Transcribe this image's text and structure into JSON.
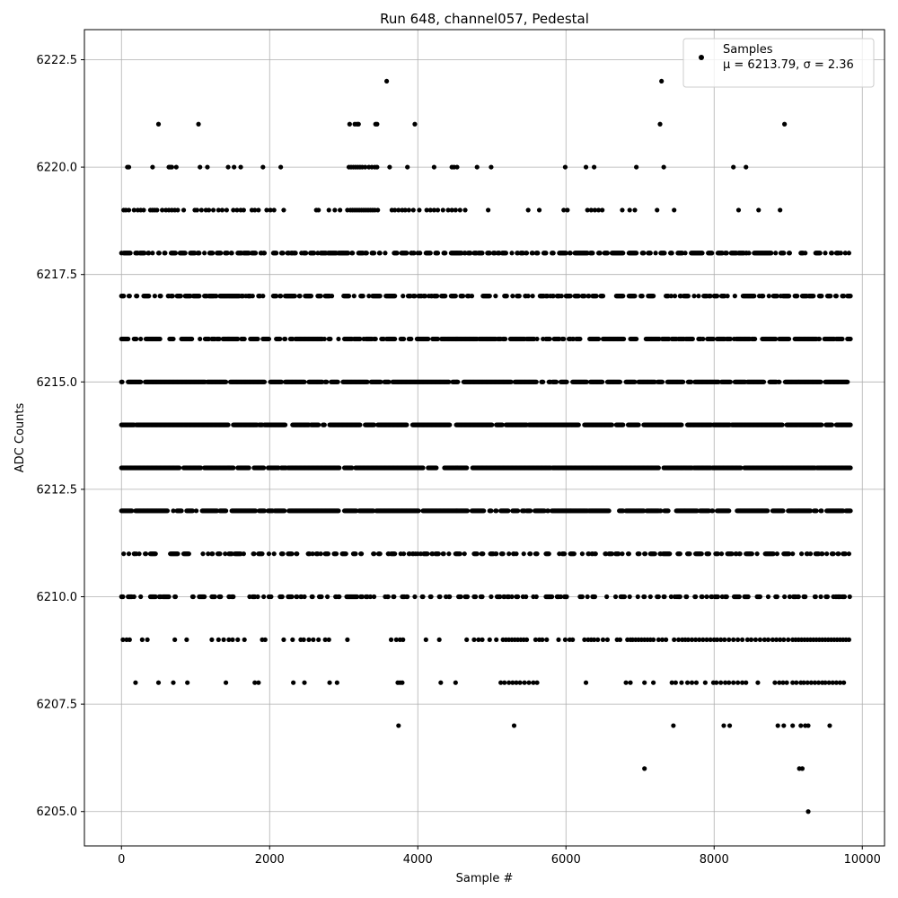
{
  "chart_data": {
    "type": "scatter",
    "title": "Run 648, channel057, Pedestal",
    "xlabel": "Sample #",
    "ylabel": "ADC Counts",
    "xlim": [
      -500,
      10300
    ],
    "ylim": [
      6204.2,
      6223.2
    ],
    "xticks": [
      0,
      2000,
      4000,
      6000,
      8000,
      10000
    ],
    "xtick_labels": [
      "0",
      "2000",
      "4000",
      "6000",
      "8000",
      "10000"
    ],
    "yticks": [
      6205.0,
      6207.5,
      6210.0,
      6212.5,
      6215.0,
      6217.5,
      6220.0,
      6222.5
    ],
    "ytick_labels": [
      "6205.0",
      "6207.5",
      "6210.0",
      "6212.5",
      "6215.0",
      "6217.5",
      "6220.0",
      "6222.5"
    ],
    "grid": true,
    "marker_color": "#000000",
    "legend": {
      "placement": "top-right",
      "entry_label": "Samples",
      "entry_stats": "μ = 6213.79, σ = 2.36"
    },
    "sample_count": 9850,
    "series": [
      {
        "name": "Samples",
        "points_by_level": [
          {
            "y": 6222,
            "x": [
              3580,
              7290
            ]
          },
          {
            "y": 6221,
            "x": [
              500,
              1040,
              3080,
              3150,
              3180,
              3200,
              3430,
              3450,
              3960,
              7270,
              8950
            ]
          },
          {
            "y": 6220,
            "x": [
              80,
              100,
              420,
              640,
              660,
              680,
              740,
              1060,
              1160,
              1440,
              1520,
              1610,
              1910,
              2150,
              3070,
              3100,
              3130,
              3160,
              3190,
              3220,
              3250,
              3290,
              3340,
              3380,
              3420,
              3450,
              3620,
              3860,
              4220,
              4460,
              4490,
              4530,
              4800,
              4990,
              5990,
              6270,
              6380,
              6950,
              7320,
              8260,
              8430
            ]
          },
          {
            "y": 6219,
            "x": [
              30,
              60,
              100,
              170,
              220,
              260,
              300,
              390,
              420,
              450,
              480,
              550,
              600,
              640,
              680,
              720,
              760,
              840,
              990,
              1020,
              1080,
              1140,
              1180,
              1240,
              1310,
              1360,
              1420,
              1510,
              1560,
              1610,
              1650,
              1760,
              1800,
              1850,
              1960,
              2010,
              2060,
              2190,
              2630,
              2660,
              2800,
              2880,
              2950,
              3050,
              3090,
              3120,
              3150,
              3180,
              3210,
              3240,
              3270,
              3300,
              3330,
              3360,
              3390,
              3420,
              3460,
              3650,
              3690,
              3740,
              3790,
              3830,
              3880,
              3940,
              4020,
              4120,
              4170,
              4220,
              4270,
              4340,
              4410,
              4460,
              4510,
              4570,
              4640,
              4950,
              5490,
              5640,
              5970,
              6020,
              6290,
              6340,
              6390,
              6440,
              6490,
              6760,
              6860,
              6930,
              7230,
              7460,
              8330,
              8600,
              8890
            ]
          },
          {
            "y": 6218,
            "density": 0.86,
            "x_range": [
              0,
              9840
            ]
          },
          {
            "y": 6217,
            "density": 0.78,
            "x_range": [
              0,
              9840
            ]
          },
          {
            "y": 6216,
            "density": 0.9,
            "x_range": [
              0,
              9840
            ]
          },
          {
            "y": 6215,
            "density": 0.95,
            "x_range": [
              0,
              9840
            ]
          },
          {
            "y": 6214,
            "density": 0.97,
            "x_range": [
              0,
              9840
            ]
          },
          {
            "y": 6213,
            "density": 0.97,
            "x_range": [
              0,
              9840
            ]
          },
          {
            "y": 6212,
            "density": 0.95,
            "x_range": [
              0,
              9840
            ]
          },
          {
            "y": 6211,
            "density": 0.7,
            "x_range": [
              0,
              9840
            ]
          },
          {
            "y": 6210,
            "density": 0.65,
            "x_range": [
              0,
              9840
            ]
          },
          {
            "y": 6209,
            "x": [
              20,
              70,
              110,
              280,
              350,
              720,
              880,
              1220,
              1310,
              1380,
              1450,
              1500,
              1570,
              1660,
              1900,
              1940,
              2190,
              2310,
              2420,
              2460,
              2530,
              2590,
              2660,
              2750,
              2800,
              3050,
              3640,
              3710,
              3760,
              3800,
              4110,
              4290,
              4660,
              4760,
              4820,
              4870,
              4970,
              5060,
              5150,
              5190,
              5230,
              5270,
              5310,
              5350,
              5390,
              5430,
              5470,
              5590,
              5640,
              5680,
              5740,
              5900,
              5990,
              6050,
              6090,
              6250,
              6300,
              6340,
              6380,
              6430,
              6500,
              6560,
              6690,
              6730,
              6830,
              6870,
              6900,
              6940,
              6980,
              7020,
              7060,
              7100,
              7140,
              7180,
              7250,
              7300,
              7350,
              7460,
              7520,
              7570,
              7610,
              7650,
              7700,
              7750,
              7800,
              7850,
              7900,
              7950,
              8000,
              8040,
              8090,
              8140,
              8200,
              8260,
              8320,
              8380,
              8450,
              8500,
              8560,
              8620,
              8680,
              8730,
              8790,
              8840,
              8890,
              8940,
              9000,
              9060,
              9100,
              9140,
              9180,
              9220,
              9260,
              9300,
              9340,
              9380,
              9420,
              9460,
              9500,
              9540,
              9580,
              9620,
              9660,
              9700,
              9740,
              9780,
              9820
            ]
          },
          {
            "y": 6208,
            "x": [
              190,
              500,
              700,
              890,
              1410,
              1800,
              1850,
              2320,
              2470,
              2810,
              2910,
              3730,
              3760,
              3790,
              4310,
              4510,
              5120,
              5170,
              5230,
              5280,
              5330,
              5380,
              5440,
              5500,
              5560,
              5610,
              6270,
              6810,
              6870,
              7060,
              7180,
              7430,
              7480,
              7560,
              7640,
              7700,
              7760,
              7880,
              7990,
              8030,
              8090,
              8150,
              8200,
              8260,
              8320,
              8380,
              8430,
              8590,
              8820,
              8880,
              8930,
              8980,
              9060,
              9110,
              9170,
              9210,
              9260,
              9310,
              9360,
              9410,
              9460,
              9500,
              9550,
              9600,
              9650,
              9700,
              9750
            ]
          },
          {
            "y": 6207,
            "x": [
              3740,
              5300,
              7450,
              8130,
              8210,
              8860,
              8940,
              9060,
              9170,
              9230,
              9270,
              9560
            ]
          },
          {
            "y": 6206,
            "x": [
              7060,
              9150,
              9190
            ]
          },
          {
            "y": 6205,
            "x": [
              9270
            ]
          }
        ]
      }
    ]
  }
}
